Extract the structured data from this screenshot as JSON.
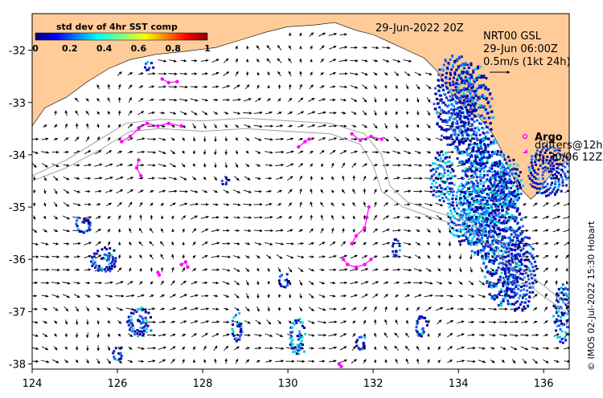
{
  "map": {
    "date_label": "29-Jun-2022 20Z",
    "product": {
      "line1": "NRT00 GSL",
      "line2": "29-Jun 06:00Z",
      "line3": "0.5m/s (1kt 24h)"
    },
    "legend": {
      "argo_label": "Argo",
      "drifters_line1": "drifters@12h",
      "drifters_line2": "to 30/06 12Z"
    },
    "credit": "© IMOS 02-Jul-2022 15:30 Hobart",
    "colorbar": {
      "title": "std dev of 4hr SST comp",
      "ticks": [
        "0",
        "0.2",
        "0.4",
        "0.6",
        "0.8",
        "1"
      ]
    },
    "colors": {
      "land": "#ffcc99",
      "sst_low": "#00008b",
      "sst_mid": "#00bfff",
      "drifter": "#ff00ff",
      "contour": "#a0a0a0"
    }
  },
  "chart_data": {
    "type": "map",
    "xlim": [
      124,
      136.6
    ],
    "ylim": [
      -38.1,
      -31.3
    ],
    "x_ticks": [
      "124",
      "126",
      "128",
      "130",
      "132",
      "134",
      "136"
    ],
    "y_ticks": [
      "-32",
      "-33",
      "-34",
      "-35",
      "-36",
      "-37",
      "-38"
    ],
    "coastline": [
      [
        124.0,
        -33.45
      ],
      [
        124.3,
        -33.1
      ],
      [
        124.8,
        -32.9
      ],
      [
        125.3,
        -32.6
      ],
      [
        125.8,
        -32.35
      ],
      [
        126.3,
        -32.18
      ],
      [
        126.9,
        -32.08
      ],
      [
        127.6,
        -32.02
      ],
      [
        128.3,
        -31.95
      ],
      [
        128.9,
        -31.8
      ],
      [
        129.5,
        -31.65
      ],
      [
        130.0,
        -31.55
      ],
      [
        130.6,
        -31.52
      ],
      [
        131.1,
        -31.47
      ],
      [
        131.6,
        -31.62
      ],
      [
        132.0,
        -31.7
      ],
      [
        132.4,
        -31.85
      ],
      [
        132.8,
        -32.0
      ],
      [
        133.2,
        -32.15
      ],
      [
        133.5,
        -32.4
      ],
      [
        133.8,
        -32.8
      ],
      [
        134.0,
        -32.95
      ],
      [
        134.15,
        -33.1
      ],
      [
        134.5,
        -33.3
      ],
      [
        134.8,
        -33.6
      ],
      [
        135.0,
        -33.9
      ],
      [
        135.2,
        -34.3
      ],
      [
        135.4,
        -34.6
      ],
      [
        135.7,
        -34.85
      ],
      [
        135.9,
        -34.7
      ],
      [
        136.05,
        -34.5
      ],
      [
        136.3,
        -34.25
      ],
      [
        136.6,
        -34.1
      ]
    ],
    "contours": [
      [
        [
          124.0,
          -34.4
        ],
        [
          124.8,
          -34.1
        ],
        [
          125.5,
          -33.75
        ],
        [
          126.2,
          -33.4
        ],
        [
          127.0,
          -33.32
        ],
        [
          128.0,
          -33.35
        ],
        [
          129.0,
          -33.3
        ],
        [
          130.0,
          -33.35
        ],
        [
          131.0,
          -33.4
        ],
        [
          131.8,
          -33.6
        ],
        [
          132.2,
          -34.0
        ],
        [
          132.4,
          -34.6
        ],
        [
          132.8,
          -34.9
        ],
        [
          133.5,
          -35.1
        ],
        [
          134.3,
          -35.3
        ],
        [
          135.0,
          -35.7
        ],
        [
          135.5,
          -36.2
        ],
        [
          136.0,
          -36.5
        ],
        [
          136.6,
          -36.9
        ]
      ],
      [
        [
          124.0,
          -34.5
        ],
        [
          124.8,
          -34.25
        ],
        [
          125.6,
          -33.9
        ],
        [
          126.3,
          -33.55
        ],
        [
          127.0,
          -33.5
        ],
        [
          128.0,
          -33.55
        ],
        [
          129.0,
          -33.5
        ],
        [
          130.0,
          -33.55
        ],
        [
          131.0,
          -33.6
        ],
        [
          131.7,
          -33.8
        ],
        [
          132.0,
          -34.2
        ],
        [
          132.2,
          -34.7
        ],
        [
          132.7,
          -35.0
        ],
        [
          133.4,
          -35.2
        ],
        [
          134.2,
          -35.4
        ],
        [
          134.9,
          -35.85
        ],
        [
          135.4,
          -36.3
        ],
        [
          135.9,
          -36.65
        ],
        [
          136.6,
          -37.05
        ]
      ]
    ],
    "drifters": [
      [
        [
          126.1,
          -33.75
        ],
        [
          126.3,
          -33.65
        ],
        [
          126.5,
          -33.5
        ],
        [
          126.7,
          -33.4
        ],
        [
          126.95,
          -33.45
        ],
        [
          127.2,
          -33.4
        ],
        [
          127.5,
          -33.45
        ]
      ],
      [
        [
          131.5,
          -33.6
        ],
        [
          131.7,
          -33.72
        ],
        [
          131.95,
          -33.65
        ],
        [
          132.2,
          -33.7
        ]
      ],
      [
        [
          127.05,
          -32.55
        ],
        [
          127.2,
          -32.62
        ],
        [
          127.4,
          -32.6
        ]
      ],
      [
        [
          130.25,
          -33.85
        ],
        [
          130.4,
          -33.75
        ],
        [
          130.5,
          -33.7
        ]
      ],
      [
        [
          126.5,
          -34.1
        ],
        [
          126.45,
          -34.25
        ],
        [
          126.55,
          -34.4
        ]
      ],
      [
        [
          131.9,
          -35.0
        ],
        [
          131.85,
          -35.2
        ],
        [
          131.8,
          -35.4
        ],
        [
          131.6,
          -35.55
        ],
        [
          131.5,
          -35.7
        ]
      ],
      [
        [
          131.3,
          -36.0
        ],
        [
          131.4,
          -36.1
        ],
        [
          131.6,
          -36.15
        ],
        [
          131.8,
          -36.1
        ],
        [
          131.95,
          -36.0
        ]
      ],
      [
        [
          127.5,
          -36.1
        ],
        [
          127.6,
          -36.05
        ],
        [
          127.65,
          -36.15
        ]
      ],
      [
        [
          126.95,
          -36.25
        ],
        [
          126.98,
          -36.3
        ]
      ],
      [
        [
          131.2,
          -38.0
        ],
        [
          131.25,
          -38.05
        ]
      ]
    ],
    "sst_patches": [
      [
        133.9,
        -32.95,
        0.5,
        0.9,
        0.1
      ],
      [
        134.3,
        -33.3,
        0.5,
        1.1,
        0.2
      ],
      [
        134.6,
        -34.8,
        0.6,
        1.2,
        0.3
      ],
      [
        135.0,
        -35.6,
        0.5,
        1.3,
        0.2
      ],
      [
        135.4,
        -36.2,
        0.4,
        0.8,
        0.1
      ],
      [
        133.6,
        -34.4,
        0.3,
        0.5,
        0.4
      ],
      [
        134.2,
        -35.1,
        0.5,
        0.6,
        0.5
      ],
      [
        135.1,
        -34.5,
        0.4,
        0.5,
        0.3
      ],
      [
        136.1,
        -34.3,
        0.5,
        0.5,
        0.1
      ],
      [
        125.7,
        -36.0,
        0.35,
        0.25,
        0.1
      ],
      [
        125.2,
        -35.3,
        0.2,
        0.2,
        0.1
      ],
      [
        126.5,
        -37.2,
        0.3,
        0.3,
        0.2
      ],
      [
        128.8,
        -37.3,
        0.15,
        0.3,
        0.3
      ],
      [
        130.2,
        -37.5,
        0.2,
        0.4,
        0.5
      ],
      [
        129.9,
        -36.4,
        0.15,
        0.15,
        0.1
      ],
      [
        126.0,
        -37.8,
        0.15,
        0.15,
        0.1
      ],
      [
        131.7,
        -37.6,
        0.15,
        0.15,
        0.1
      ],
      [
        133.1,
        -37.3,
        0.15,
        0.25,
        0.1
      ],
      [
        136.4,
        -37.0,
        0.2,
        0.6,
        0.3
      ],
      [
        128.5,
        -34.5,
        0.1,
        0.1,
        0.1
      ],
      [
        132.5,
        -35.8,
        0.1,
        0.25,
        0.1
      ],
      [
        126.7,
        -32.3,
        0.12,
        0.12,
        0.1
      ]
    ]
  }
}
